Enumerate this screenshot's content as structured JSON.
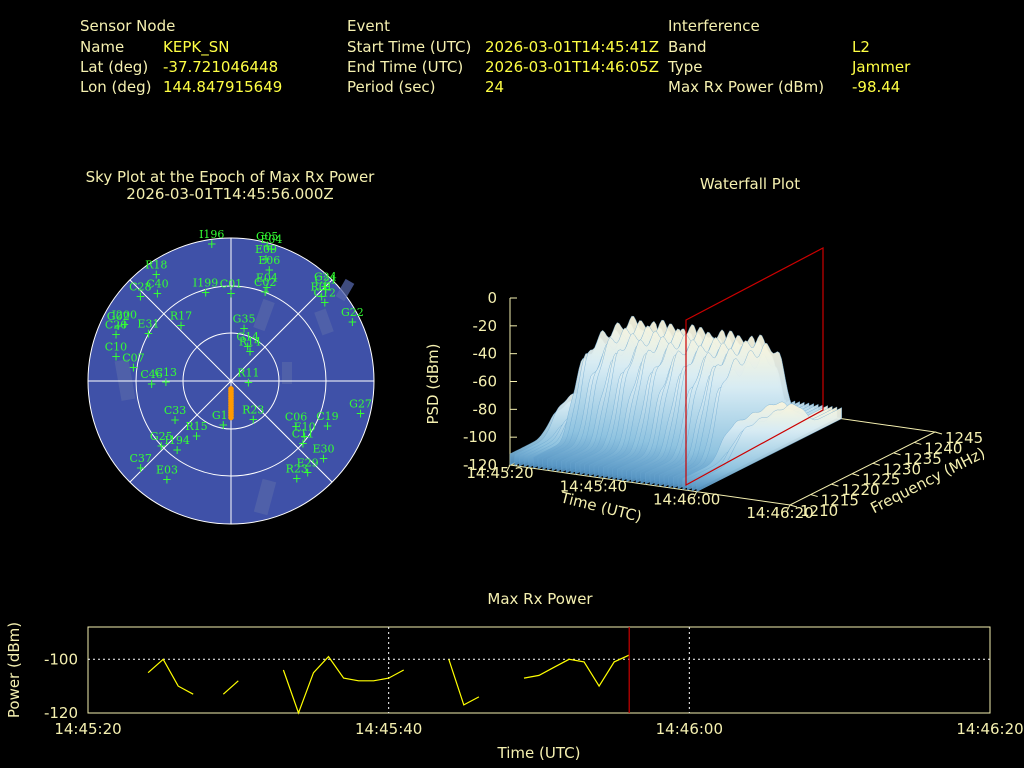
{
  "header": {
    "sensor": {
      "title": "Sensor Node",
      "rows": [
        {
          "label": "Name",
          "value": "KEPK_SN"
        },
        {
          "label": "Lat (deg)",
          "value": "-37.721046448"
        },
        {
          "label": "Lon (deg)",
          "value": "144.847915649"
        }
      ]
    },
    "event": {
      "title": "Event",
      "rows": [
        {
          "label": "Start Time (UTC)",
          "value": "2026-03-01T14:45:41Z"
        },
        {
          "label": "End Time (UTC)",
          "value": "2026-03-01T14:46:05Z"
        },
        {
          "label": "Period (sec)",
          "value": "24"
        }
      ]
    },
    "interference": {
      "title": "Interference",
      "rows": [
        {
          "label": "Band",
          "value": "L2"
        },
        {
          "label": "Type",
          "value": "Jammer"
        },
        {
          "label": "Max Rx Power (dBm)",
          "value": "-98.44"
        }
      ]
    }
  },
  "colors": {
    "background": "#000000",
    "label_text": "#f5f0b0",
    "value_text": "#ffff44",
    "sky_disc": "#3f51a8",
    "satellite": "#33ff33",
    "track": "#ff9900",
    "marker": "#cc0000",
    "power_line": "#ffff00"
  },
  "chart_data": [
    {
      "type": "scatter",
      "title": "Sky Plot at the Epoch of Max Rx Power",
      "subtitle": "2026-03-01T14:45:56.000Z",
      "projection": "polar (azimuth / elevation)",
      "elevation_rings": [
        0,
        30,
        60
      ],
      "satellites": [
        {
          "id": "C05",
          "az": 15,
          "el": 2
        },
        {
          "id": "E04",
          "az": 17,
          "el": 3
        },
        {
          "id": "I196",
          "az": -8,
          "el": 3
        },
        {
          "id": "E09",
          "az": 16,
          "el": 10
        },
        {
          "id": "E06",
          "az": 19,
          "el": 16
        },
        {
          "id": "R18",
          "az": -35,
          "el": 8
        },
        {
          "id": "G24",
          "az": 45,
          "el": 6
        },
        {
          "id": "C21",
          "az": 46,
          "el": 7
        },
        {
          "id": "R01",
          "az": 47,
          "el": 12
        },
        {
          "id": "C12",
          "az": 50,
          "el": 13
        },
        {
          "id": "G22",
          "az": 64,
          "el": 5
        },
        {
          "id": "C28",
          "az": -47,
          "el": 12
        },
        {
          "id": "C40",
          "az": -40,
          "el": 18
        },
        {
          "id": "E04",
          "az": 21,
          "el": 27
        },
        {
          "id": "C02",
          "az": 21,
          "el": 30
        },
        {
          "id": "C01",
          "az": 0,
          "el": 35
        },
        {
          "id": "I199",
          "az": -16,
          "el": 32
        },
        {
          "id": "I200",
          "az": -62,
          "el": 14
        },
        {
          "id": "G02",
          "az": -64,
          "el": 11
        },
        {
          "id": "C20",
          "az": -68,
          "el": 12
        },
        {
          "id": "C10",
          "az": -78,
          "el": 16
        },
        {
          "id": "E31",
          "az": -60,
          "el": 30
        },
        {
          "id": "R17",
          "az": -42,
          "el": 43
        },
        {
          "id": "G35",
          "az": 14,
          "el": 56
        },
        {
          "id": "G14",
          "az": 26,
          "el": 66
        },
        {
          "id": "R14",
          "az": 33,
          "el": 68
        },
        {
          "id": "C07",
          "az": -82,
          "el": 28
        },
        {
          "id": "C46",
          "az": -92,
          "el": 40
        },
        {
          "id": "C13",
          "az": -91,
          "el": 49
        },
        {
          "id": "R11",
          "az": 95,
          "el": 79
        },
        {
          "id": "G12",
          "az": -170,
          "el": 62
        },
        {
          "id": "R23",
          "az": 150,
          "el": 62
        },
        {
          "id": "C06",
          "az": 125,
          "el": 40
        },
        {
          "id": "C33",
          "az": -125,
          "el": 47
        },
        {
          "id": "C19",
          "az": 115,
          "el": 23
        },
        {
          "id": "E10",
          "az": 127,
          "el": 32
        },
        {
          "id": "C11",
          "az": 131,
          "el": 30
        },
        {
          "id": "G27",
          "az": 104,
          "el": 6
        },
        {
          "id": "E30",
          "az": 130,
          "el": 14
        },
        {
          "id": "R15",
          "az": -148,
          "el": 49
        },
        {
          "id": "G25",
          "az": -133,
          "el": 30
        },
        {
          "id": "I194",
          "az": -142,
          "el": 35
        },
        {
          "id": "C37",
          "az": -134,
          "el": 11
        },
        {
          "id": "E03",
          "az": -147,
          "el": 16
        },
        {
          "id": "R23",
          "az": 146,
          "el": 16
        },
        {
          "id": "E29",
          "az": 140,
          "el": 15
        }
      ],
      "track": {
        "label": "jammer direction track",
        "az_from": 180,
        "az_to": 180,
        "el_from": 85,
        "el_to": 67
      }
    },
    {
      "type": "area",
      "title": "Waterfall Plot",
      "xlabel": "Time (UTC)",
      "ylabel": "Frequency (MHz)",
      "zlabel": "PSD (dBm)",
      "x_ticks": [
        "14:45:20",
        "14:45:40",
        "14:46:00",
        "14:46:20"
      ],
      "y_ticks": [
        1210,
        1215,
        1220,
        1225,
        1230,
        1235,
        1240,
        1245
      ],
      "z_ticks": [
        0,
        -20,
        -40,
        -60,
        -80,
        -100,
        -120
      ],
      "zlim": [
        -120,
        0
      ],
      "marker_time": "14:45:56"
    },
    {
      "type": "line",
      "title": "Max Rx Power",
      "xlabel": "Time (UTC)",
      "ylabel": "Power (dBm)",
      "x_ticks": [
        "14:45:20",
        "14:45:40",
        "14:46:00",
        "14:46:20"
      ],
      "y_ticks": [
        -100,
        -120
      ],
      "xlim": [
        "14:45:20",
        "14:46:20"
      ],
      "ylim": [
        -120,
        -88
      ],
      "marker_time": "14:45:56",
      "series": [
        {
          "values": [
            {
              "t": "14:45:24",
              "v": -105
            },
            {
              "t": "14:45:25",
              "v": -100
            },
            {
              "t": "14:45:26",
              "v": -110
            },
            {
              "t": "14:45:27",
              "v": -113
            },
            {
              "t": "14:45:29",
              "v": -113
            },
            {
              "t": "14:45:30",
              "v": -108
            },
            {
              "t": "14:45:33",
              "v": -104
            },
            {
              "t": "14:45:34",
              "v": -120
            },
            {
              "t": "14:45:35",
              "v": -105
            },
            {
              "t": "14:45:36",
              "v": -99
            },
            {
              "t": "14:45:37",
              "v": -107
            },
            {
              "t": "14:45:38",
              "v": -108
            },
            {
              "t": "14:45:39",
              "v": -108
            },
            {
              "t": "14:45:40",
              "v": -107
            },
            {
              "t": "14:45:41",
              "v": -104
            },
            {
              "t": "14:45:44",
              "v": -100
            },
            {
              "t": "14:45:45",
              "v": -117
            },
            {
              "t": "14:45:46",
              "v": -114
            },
            {
              "t": "14:45:49",
              "v": -107
            },
            {
              "t": "14:45:50",
              "v": -106
            },
            {
              "t": "14:45:51",
              "v": -103
            },
            {
              "t": "14:45:52",
              "v": -100
            },
            {
              "t": "14:45:53",
              "v": -101
            },
            {
              "t": "14:45:54",
              "v": -110
            },
            {
              "t": "14:45:55",
              "v": -101
            },
            {
              "t": "14:45:56",
              "v": -98.44
            }
          ]
        }
      ]
    }
  ]
}
